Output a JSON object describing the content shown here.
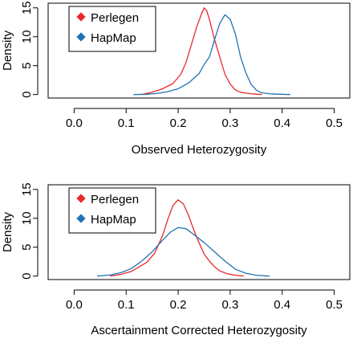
{
  "chart_data": [
    {
      "type": "line",
      "xlabel": "Observed Heterozygosity",
      "ylabel": "Density",
      "xlim": [
        -0.05,
        0.53
      ],
      "ylim": [
        -0.6,
        15.8
      ],
      "xticks": [
        0.0,
        0.1,
        0.2,
        0.3,
        0.4,
        0.5
      ],
      "xtick_labels": [
        "0.0",
        "0.1",
        "0.2",
        "0.3",
        "0.4",
        "0.5"
      ],
      "yticks": [
        0,
        5,
        10,
        15
      ],
      "ytick_labels": [
        "0",
        "5",
        "10",
        "15"
      ],
      "legend": {
        "position": "top-left",
        "entries": [
          "Perlegen",
          "HapMap"
        ]
      },
      "grid": false,
      "series": [
        {
          "name": "Perlegen",
          "color": "#e8292b",
          "x": [
            0.13,
            0.15,
            0.17,
            0.19,
            0.205,
            0.215,
            0.225,
            0.235,
            0.245,
            0.25,
            0.255,
            0.26,
            0.27,
            0.28,
            0.29,
            0.3,
            0.31,
            0.32,
            0.33,
            0.345,
            0.36
          ],
          "y": [
            0,
            0.4,
            1.0,
            1.9,
            3.5,
            5.5,
            8.5,
            11.5,
            14.0,
            15.0,
            14.5,
            13.0,
            9.5,
            6.5,
            3.5,
            1.8,
            0.8,
            0.4,
            0.25,
            0.1,
            0
          ]
        },
        {
          "name": "HapMap",
          "color": "#2272b4",
          "x": [
            0.115,
            0.14,
            0.16,
            0.18,
            0.2,
            0.22,
            0.23,
            0.24,
            0.25,
            0.26,
            0.27,
            0.28,
            0.29,
            0.3,
            0.31,
            0.32,
            0.33,
            0.34,
            0.35,
            0.36,
            0.38,
            0.415
          ],
          "y": [
            0,
            0.05,
            0.2,
            0.5,
            1.0,
            2.0,
            2.8,
            3.6,
            5.2,
            6.5,
            9.5,
            12.3,
            13.8,
            13.0,
            10.5,
            6.5,
            3.8,
            1.8,
            0.8,
            0.3,
            0.1,
            0
          ]
        }
      ]
    },
    {
      "type": "line",
      "xlabel": "Ascertainment Corrected Heterozygosity",
      "ylabel": "Density",
      "xlim": [
        -0.05,
        0.53
      ],
      "ylim": [
        -0.6,
        15.8
      ],
      "xticks": [
        0.0,
        0.1,
        0.2,
        0.3,
        0.4,
        0.5
      ],
      "xtick_labels": [
        "0.0",
        "0.1",
        "0.2",
        "0.3",
        "0.4",
        "0.5"
      ],
      "yticks": [
        0,
        5,
        10,
        15
      ],
      "ytick_labels": [
        "0",
        "5",
        "10",
        "15"
      ],
      "legend": {
        "position": "top-left",
        "entries": [
          "Perlegen",
          "HapMap"
        ]
      },
      "grid": false,
      "series": [
        {
          "name": "Perlegen",
          "color": "#e8292b",
          "x": [
            0.07,
            0.09,
            0.11,
            0.125,
            0.14,
            0.155,
            0.17,
            0.18,
            0.19,
            0.2,
            0.21,
            0.22,
            0.23,
            0.24,
            0.25,
            0.26,
            0.27,
            0.28,
            0.295,
            0.31,
            0.325
          ],
          "y": [
            0,
            0.3,
            0.8,
            1.6,
            2.4,
            4.0,
            7.0,
            9.8,
            12.2,
            13.2,
            12.5,
            10.5,
            8.0,
            5.8,
            3.8,
            2.6,
            1.6,
            0.9,
            0.4,
            0.15,
            0
          ]
        },
        {
          "name": "HapMap",
          "color": "#2272b4",
          "x": [
            0.045,
            0.07,
            0.09,
            0.11,
            0.13,
            0.15,
            0.17,
            0.185,
            0.2,
            0.215,
            0.23,
            0.25,
            0.27,
            0.29,
            0.31,
            0.33,
            0.35,
            0.375
          ],
          "y": [
            0,
            0.2,
            0.6,
            1.3,
            2.6,
            4.2,
            6.2,
            7.6,
            8.4,
            8.2,
            7.2,
            5.8,
            4.2,
            2.6,
            1.2,
            0.5,
            0.15,
            0
          ]
        }
      ]
    }
  ]
}
